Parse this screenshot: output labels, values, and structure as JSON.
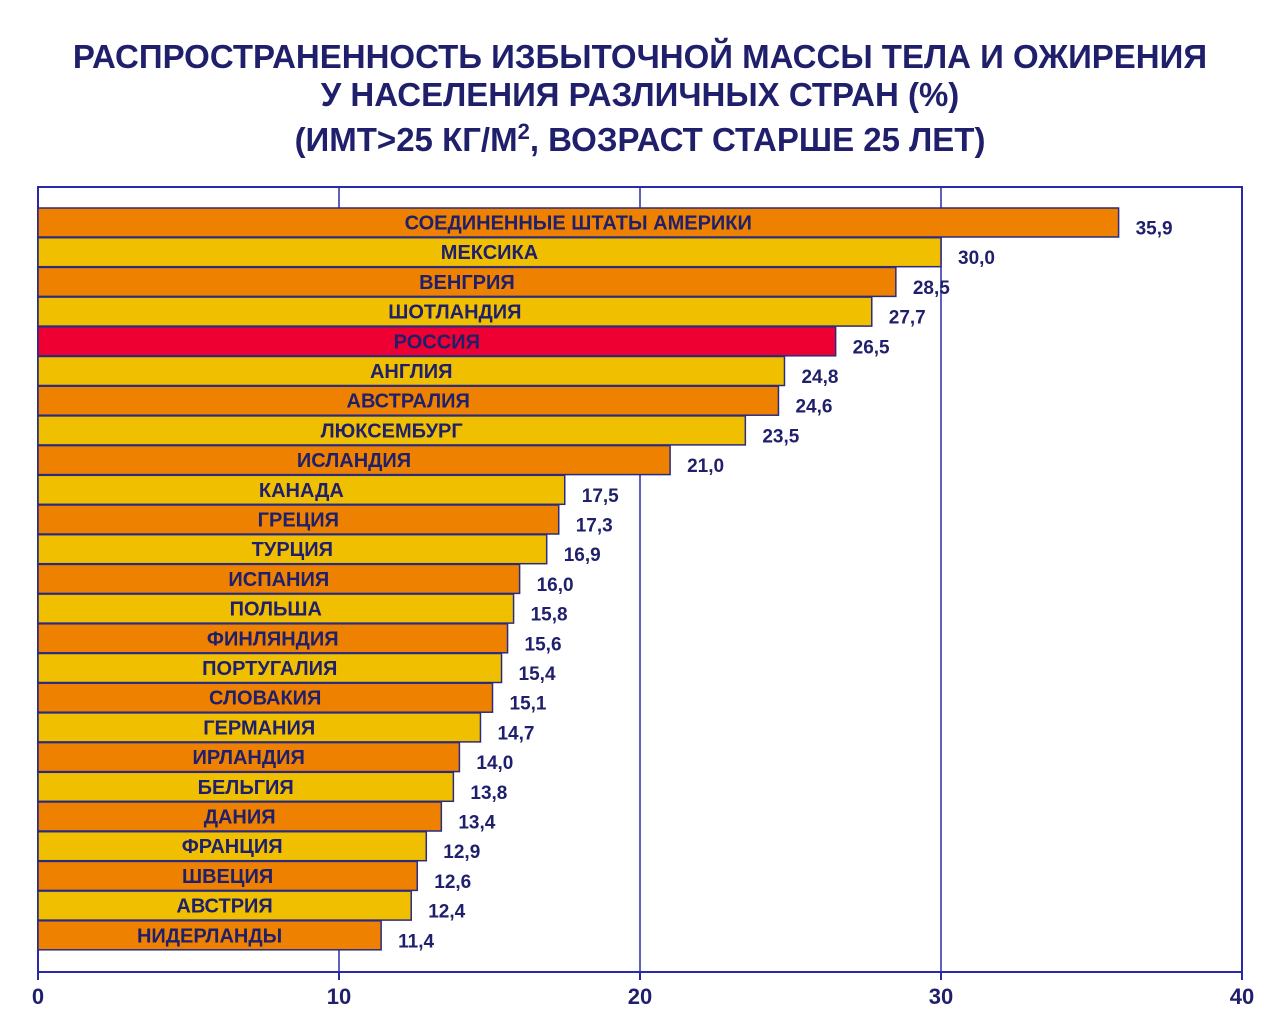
{
  "title": {
    "line1": "РАСПРОСТРАНЕННОСТЬ ИЗБЫТОЧНОЙ МАССЫ ТЕЛА И ОЖИРЕНИЯ",
    "line2": "У НАСЕЛЕНИЯ РАЗЛИЧНЫХ СТРАН (%)",
    "line3_pre": "(ИМТ>25 КГ/М",
    "line3_sup": "2",
    "line3_post": ", ВОЗРАСТ СТАРШЕ 25 ЛЕТ)"
  },
  "colors": {
    "orange": "#ee8200",
    "yellow": "#f0c000",
    "highlight": "#ee0033",
    "text": "#1f1f6b",
    "axis": "#2a2aa8"
  },
  "chart_data": {
    "type": "bar",
    "orientation": "horizontal",
    "categories": [
      "СОЕДИНЕННЫЕ ШТАТЫ АМЕРИКИ",
      "МЕКСИКА",
      "ВЕНГРИЯ",
      "ШОТЛАНДИЯ",
      "РОССИЯ",
      "АНГЛИЯ",
      "АВСТРАЛИЯ",
      "ЛЮКСЕМБУРГ",
      "ИСЛАНДИЯ",
      "КАНАДА",
      "ГРЕЦИЯ",
      "ТУРЦИЯ",
      "ИСПАНИЯ",
      "ПОЛЬША",
      "ФИНЛЯНДИЯ",
      "ПОРТУГАЛИЯ",
      "СЛОВАКИЯ",
      "ГЕРМАНИЯ",
      "ИРЛАНДИЯ",
      "БЕЛЬГИЯ",
      "ДАНИЯ",
      "ФРАНЦИЯ",
      "ШВЕЦИЯ",
      "АВСТРИЯ",
      "НИДЕРЛАНДЫ"
    ],
    "values": [
      35.9,
      30.0,
      28.5,
      27.7,
      26.5,
      24.8,
      24.6,
      23.5,
      21.0,
      17.5,
      17.3,
      16.9,
      16.0,
      15.8,
      15.6,
      15.4,
      15.1,
      14.7,
      14.0,
      13.8,
      13.4,
      12.9,
      12.6,
      12.4,
      11.4
    ],
    "value_labels": [
      "35,9",
      "30,0",
      "28,5",
      "27,7",
      "26,5",
      "24,8",
      "24,6",
      "23,5",
      "21,0",
      "17,5",
      "17,3",
      "16,9",
      "16,0",
      "15,8",
      "15,6",
      "15,4",
      "15,1",
      "14,7",
      "14,0",
      "13,8",
      "13,4",
      "12,9",
      "12,6",
      "12,4",
      "11,4"
    ],
    "highlight": "РОССИЯ",
    "xlim": [
      0,
      40
    ],
    "xticks": [
      0,
      10,
      20,
      30,
      40
    ],
    "xtick_labels": [
      "0",
      "10",
      "20",
      "30",
      "40"
    ],
    "grid": "vertical",
    "xlabel": "",
    "ylabel": ""
  }
}
